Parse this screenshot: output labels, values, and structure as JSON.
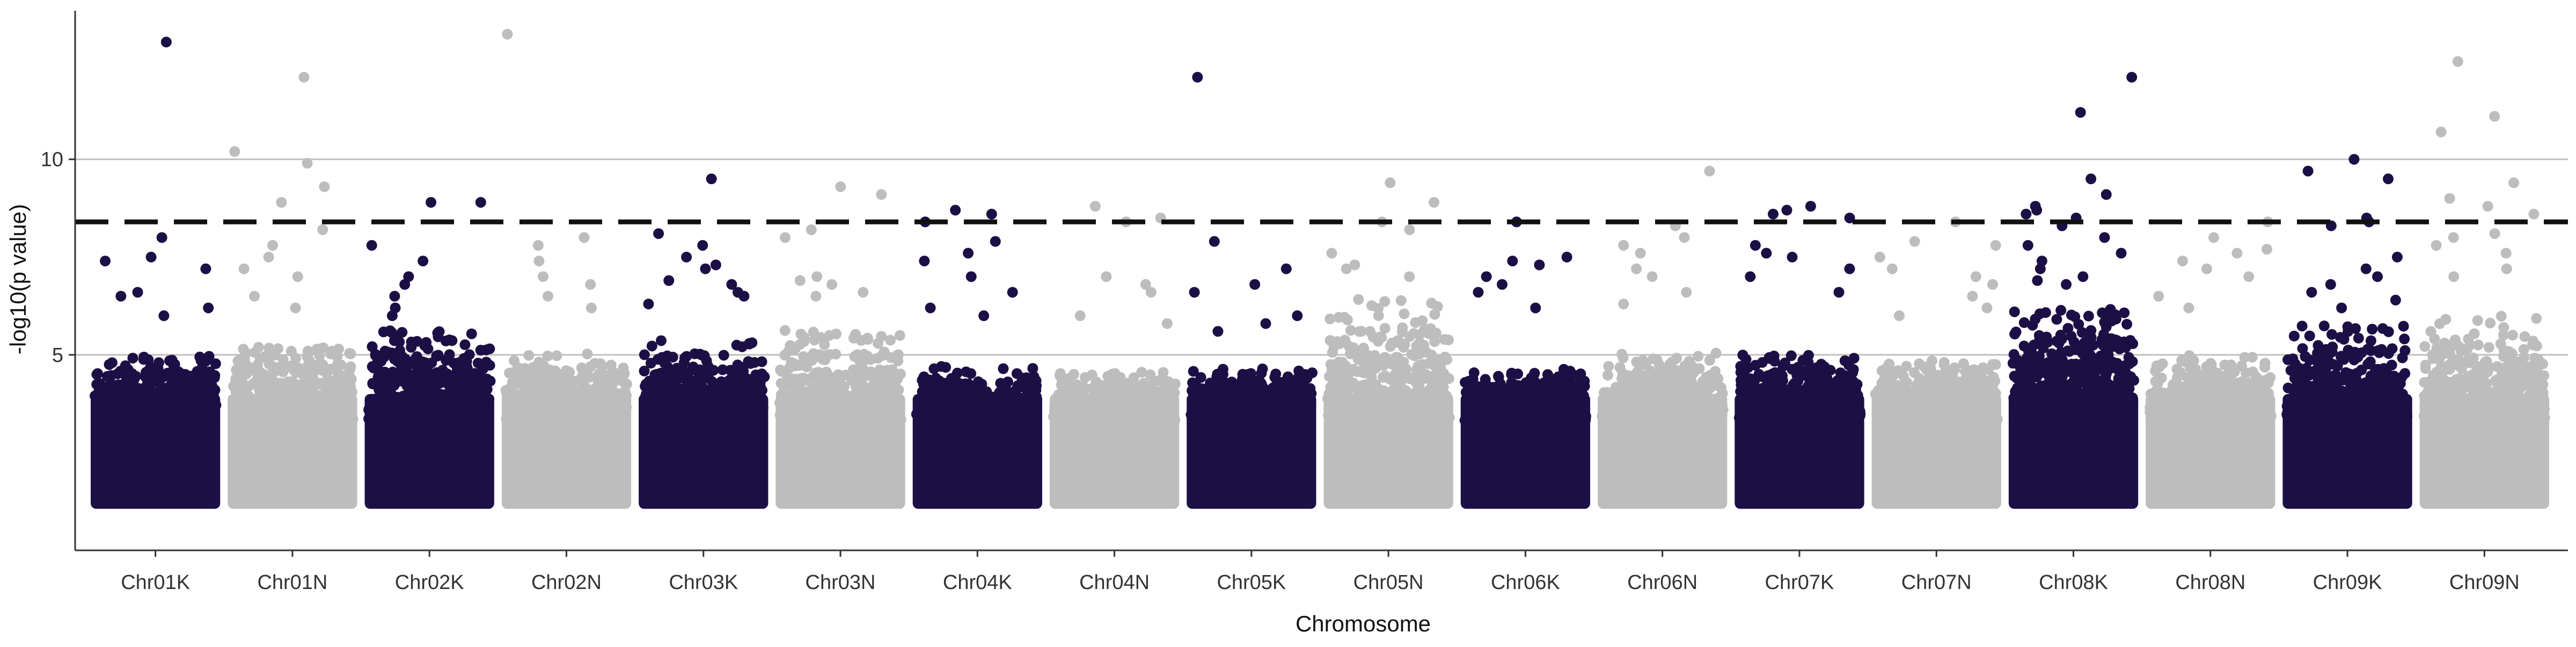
{
  "chart_data": {
    "type": "scatter",
    "subtype": "manhattan",
    "title": "",
    "xlabel": "Chromosome",
    "ylabel": "-log10(p value)",
    "ylim": [
      0,
      13.8
    ],
    "yticks": [
      5,
      10
    ],
    "ygrid": true,
    "threshold": 8.4,
    "colors": {
      "dark": "#1c0f45",
      "light": "#bdbdbd",
      "threshold": "#111111",
      "grid": "#bfbfbf"
    },
    "chromosomes": [
      {
        "name": "Chr01K",
        "color": "dark",
        "max_bulk": 5.0,
        "high": [
          13.0,
          8.0,
          7.5,
          7.4,
          7.2,
          6.6,
          6.5,
          6.2,
          6.0
        ]
      },
      {
        "name": "Chr01N",
        "color": "light",
        "max_bulk": 5.2,
        "high": [
          12.1,
          10.2,
          9.9,
          9.3,
          8.9,
          8.2,
          7.8,
          7.5,
          7.2,
          7.0,
          6.5,
          6.2
        ]
      },
      {
        "name": "Chr02K",
        "color": "dark",
        "max_bulk": 5.6,
        "high": [
          8.9,
          8.9,
          7.8,
          7.4,
          7.0,
          6.8,
          6.5,
          6.2,
          6.0
        ]
      },
      {
        "name": "Chr02N",
        "color": "light",
        "max_bulk": 5.0,
        "high": [
          13.2,
          8.0,
          7.8,
          7.4,
          7.0,
          6.8,
          6.5,
          6.2
        ]
      },
      {
        "name": "Chr03K",
        "color": "dark",
        "max_bulk": 5.4,
        "high": [
          9.5,
          8.1,
          7.8,
          7.5,
          7.3,
          7.2,
          6.9,
          6.8,
          6.6,
          6.5,
          6.3
        ]
      },
      {
        "name": "Chr03N",
        "color": "light",
        "max_bulk": 5.6,
        "high": [
          9.3,
          9.1,
          8.2,
          8.0,
          7.0,
          6.9,
          6.8,
          6.6,
          6.5
        ]
      },
      {
        "name": "Chr04K",
        "color": "dark",
        "max_bulk": 4.7,
        "high": [
          8.7,
          8.6,
          8.4,
          7.9,
          7.6,
          7.4,
          7.0,
          6.6,
          6.2,
          6.0
        ]
      },
      {
        "name": "Chr04N",
        "color": "light",
        "max_bulk": 4.6,
        "high": [
          8.8,
          8.5,
          8.4,
          7.0,
          6.8,
          6.6,
          6.0,
          5.8
        ]
      },
      {
        "name": "Chr05K",
        "color": "dark",
        "max_bulk": 4.6,
        "high": [
          12.1,
          7.9,
          7.2,
          6.8,
          6.6,
          6.0,
          5.8,
          5.6
        ]
      },
      {
        "name": "Chr05N",
        "color": "light",
        "max_bulk": 6.5,
        "high": [
          9.4,
          8.9,
          8.4,
          8.2,
          7.6,
          7.3,
          7.2,
          7.0
        ]
      },
      {
        "name": "Chr06K",
        "color": "dark",
        "max_bulk": 4.6,
        "high": [
          8.4,
          7.5,
          7.4,
          7.3,
          7.0,
          6.8,
          6.6,
          6.2
        ]
      },
      {
        "name": "Chr06N",
        "color": "light",
        "max_bulk": 5.1,
        "high": [
          9.7,
          8.3,
          8.0,
          7.8,
          7.6,
          7.2,
          7.0,
          6.6,
          6.3
        ]
      },
      {
        "name": "Chr07K",
        "color": "dark",
        "max_bulk": 5.0,
        "high": [
          8.8,
          8.7,
          8.6,
          8.5,
          7.8,
          7.6,
          7.5,
          7.2,
          7.0,
          6.6
        ]
      },
      {
        "name": "Chr07N",
        "color": "light",
        "max_bulk": 4.8,
        "high": [
          8.4,
          7.9,
          7.8,
          7.5,
          7.2,
          7.0,
          6.8,
          6.5,
          6.2,
          6.0
        ]
      },
      {
        "name": "Chr08K",
        "color": "dark",
        "max_bulk": 6.2,
        "high": [
          12.1,
          11.2,
          9.5,
          9.1,
          8.8,
          8.7,
          8.6,
          8.5,
          8.3,
          8.0,
          7.8,
          7.6,
          7.4,
          7.2,
          7.0,
          6.9,
          6.8
        ]
      },
      {
        "name": "Chr08N",
        "color": "light",
        "max_bulk": 5.0,
        "high": [
          8.4,
          8.0,
          7.7,
          7.6,
          7.4,
          7.2,
          7.0,
          6.5,
          6.2
        ]
      },
      {
        "name": "Chr09K",
        "color": "dark",
        "max_bulk": 5.8,
        "high": [
          10.0,
          9.7,
          9.5,
          8.5,
          8.4,
          8.3,
          7.5,
          7.2,
          7.0,
          6.8,
          6.6,
          6.4,
          6.2
        ]
      },
      {
        "name": "Chr09N",
        "color": "light",
        "max_bulk": 6.0,
        "high": [
          12.5,
          11.1,
          10.7,
          9.4,
          9.0,
          8.8,
          8.6,
          8.1,
          8.0,
          7.8,
          7.6,
          7.2,
          7.0
        ]
      }
    ]
  }
}
